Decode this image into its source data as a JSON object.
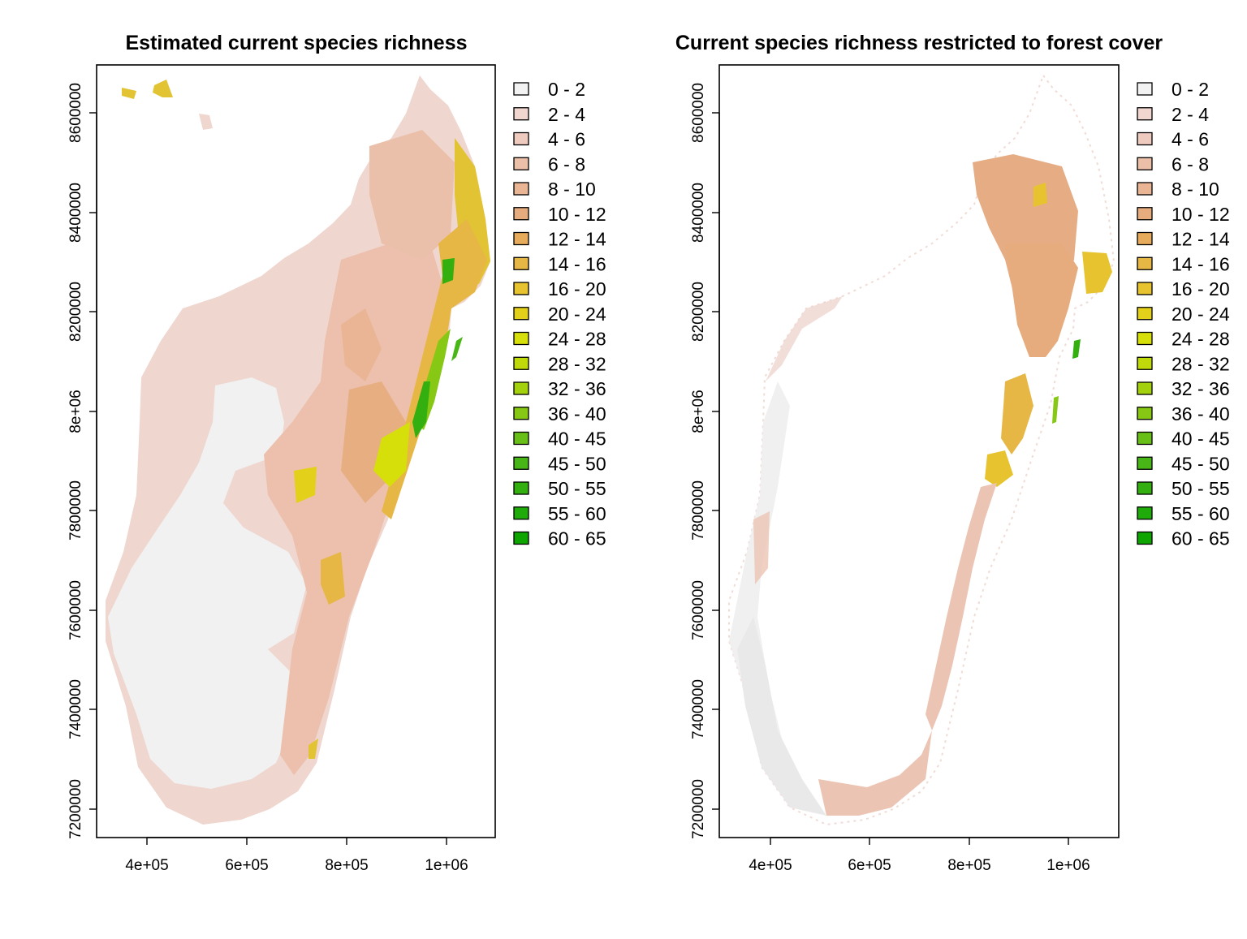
{
  "panels": [
    {
      "title": "Estimated current species richness",
      "x_ticks": [
        "4e+05",
        "6e+05",
        "8e+05",
        "1e+06"
      ],
      "y_ticks": [
        "7200000",
        "7400000",
        "7600000",
        "7800000",
        "8e+06",
        "8200000",
        "8400000",
        "8600000"
      ]
    },
    {
      "title": "Current species richness restricted to forest cover",
      "x_ticks": [
        "4e+05",
        "6e+05",
        "8e+05",
        "1e+06"
      ],
      "y_ticks": [
        "7200000",
        "7400000",
        "7600000",
        "7800000",
        "8e+06",
        "8200000",
        "8400000",
        "8600000"
      ]
    }
  ],
  "legend": [
    {
      "label": "0 - 2",
      "color": "#f2f2f2"
    },
    {
      "label": "2 - 4",
      "color": "#f0d6cf"
    },
    {
      "label": "4 - 6",
      "color": "#efcbbf"
    },
    {
      "label": "6 - 8",
      "color": "#ecbfa9"
    },
    {
      "label": "8 - 10",
      "color": "#e9b594"
    },
    {
      "label": "10 - 12",
      "color": "#e7ac7e"
    },
    {
      "label": "12 - 14",
      "color": "#e6ac5b"
    },
    {
      "label": "14 - 16",
      "color": "#e6b744"
    },
    {
      "label": "16 - 20",
      "color": "#e6c32f"
    },
    {
      "label": "20 - 24",
      "color": "#e2d01a"
    },
    {
      "label": "24 - 28",
      "color": "#d7df0b"
    },
    {
      "label": "28 - 32",
      "color": "#bfd90a"
    },
    {
      "label": "32 - 36",
      "color": "#a4d10d"
    },
    {
      "label": "36 - 40",
      "color": "#86c814"
    },
    {
      "label": "40 - 45",
      "color": "#67bf17"
    },
    {
      "label": "45 - 50",
      "color": "#48b616"
    },
    {
      "label": "50 - 55",
      "color": "#33b010"
    },
    {
      "label": "55 - 60",
      "color": "#1fab0a"
    },
    {
      "label": "60 - 65",
      "color": "#0ea500"
    }
  ]
}
